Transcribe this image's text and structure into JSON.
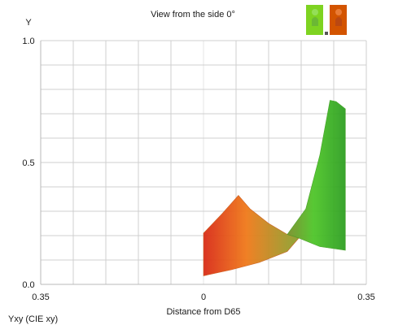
{
  "chart_data": {
    "type": "area",
    "title": "View from the side 0°",
    "ylabel": "Y",
    "xlabel": "Distance from D65",
    "footer_label": "Yxy (CIE xy)",
    "x_tick_labels": [
      "0.35",
      "0",
      "0.35"
    ],
    "y_tick_labels": [
      "1.0",
      "0.5",
      "0.0"
    ],
    "x_ticks": [
      -0.35,
      0,
      0.35
    ],
    "y_ticks": [
      1.0,
      0.5,
      0.0
    ],
    "xlim": [
      -0.35,
      0.35
    ],
    "ylim": [
      0,
      1.0
    ],
    "grid": true,
    "legend_position": "top-right",
    "legend_swatch_colors": [
      "#7ed321",
      "#d35400"
    ],
    "colors": {
      "red": "#d92b17",
      "orange": "#f07a1a",
      "green": "#4fc62a",
      "dark_green": "#2f9f23"
    },
    "series": [
      {
        "values": [
          {
            "x": 0.0,
            "y": 0.21
          },
          {
            "x": 0.04,
            "y": 0.29
          },
          {
            "x": 0.075,
            "y": 0.365
          },
          {
            "x": 0.1,
            "y": 0.31
          },
          {
            "x": 0.14,
            "y": 0.25
          },
          {
            "x": 0.18,
            "y": 0.205
          },
          {
            "x": 0.205,
            "y": 0.19
          },
          {
            "x": 0.18,
            "y": 0.135
          },
          {
            "x": 0.12,
            "y": 0.09
          },
          {
            "x": 0.06,
            "y": 0.06
          },
          {
            "x": 0.0,
            "y": 0.035
          }
        ]
      },
      {
        "values": [
          {
            "x": 0.18,
            "y": 0.205
          },
          {
            "x": 0.22,
            "y": 0.31
          },
          {
            "x": 0.25,
            "y": 0.53
          },
          {
            "x": 0.272,
            "y": 0.755
          },
          {
            "x": 0.285,
            "y": 0.75
          },
          {
            "x": 0.305,
            "y": 0.72
          },
          {
            "x": 0.305,
            "y": 0.14
          },
          {
            "x": 0.25,
            "y": 0.155
          },
          {
            "x": 0.205,
            "y": 0.19
          }
        ]
      }
    ]
  }
}
